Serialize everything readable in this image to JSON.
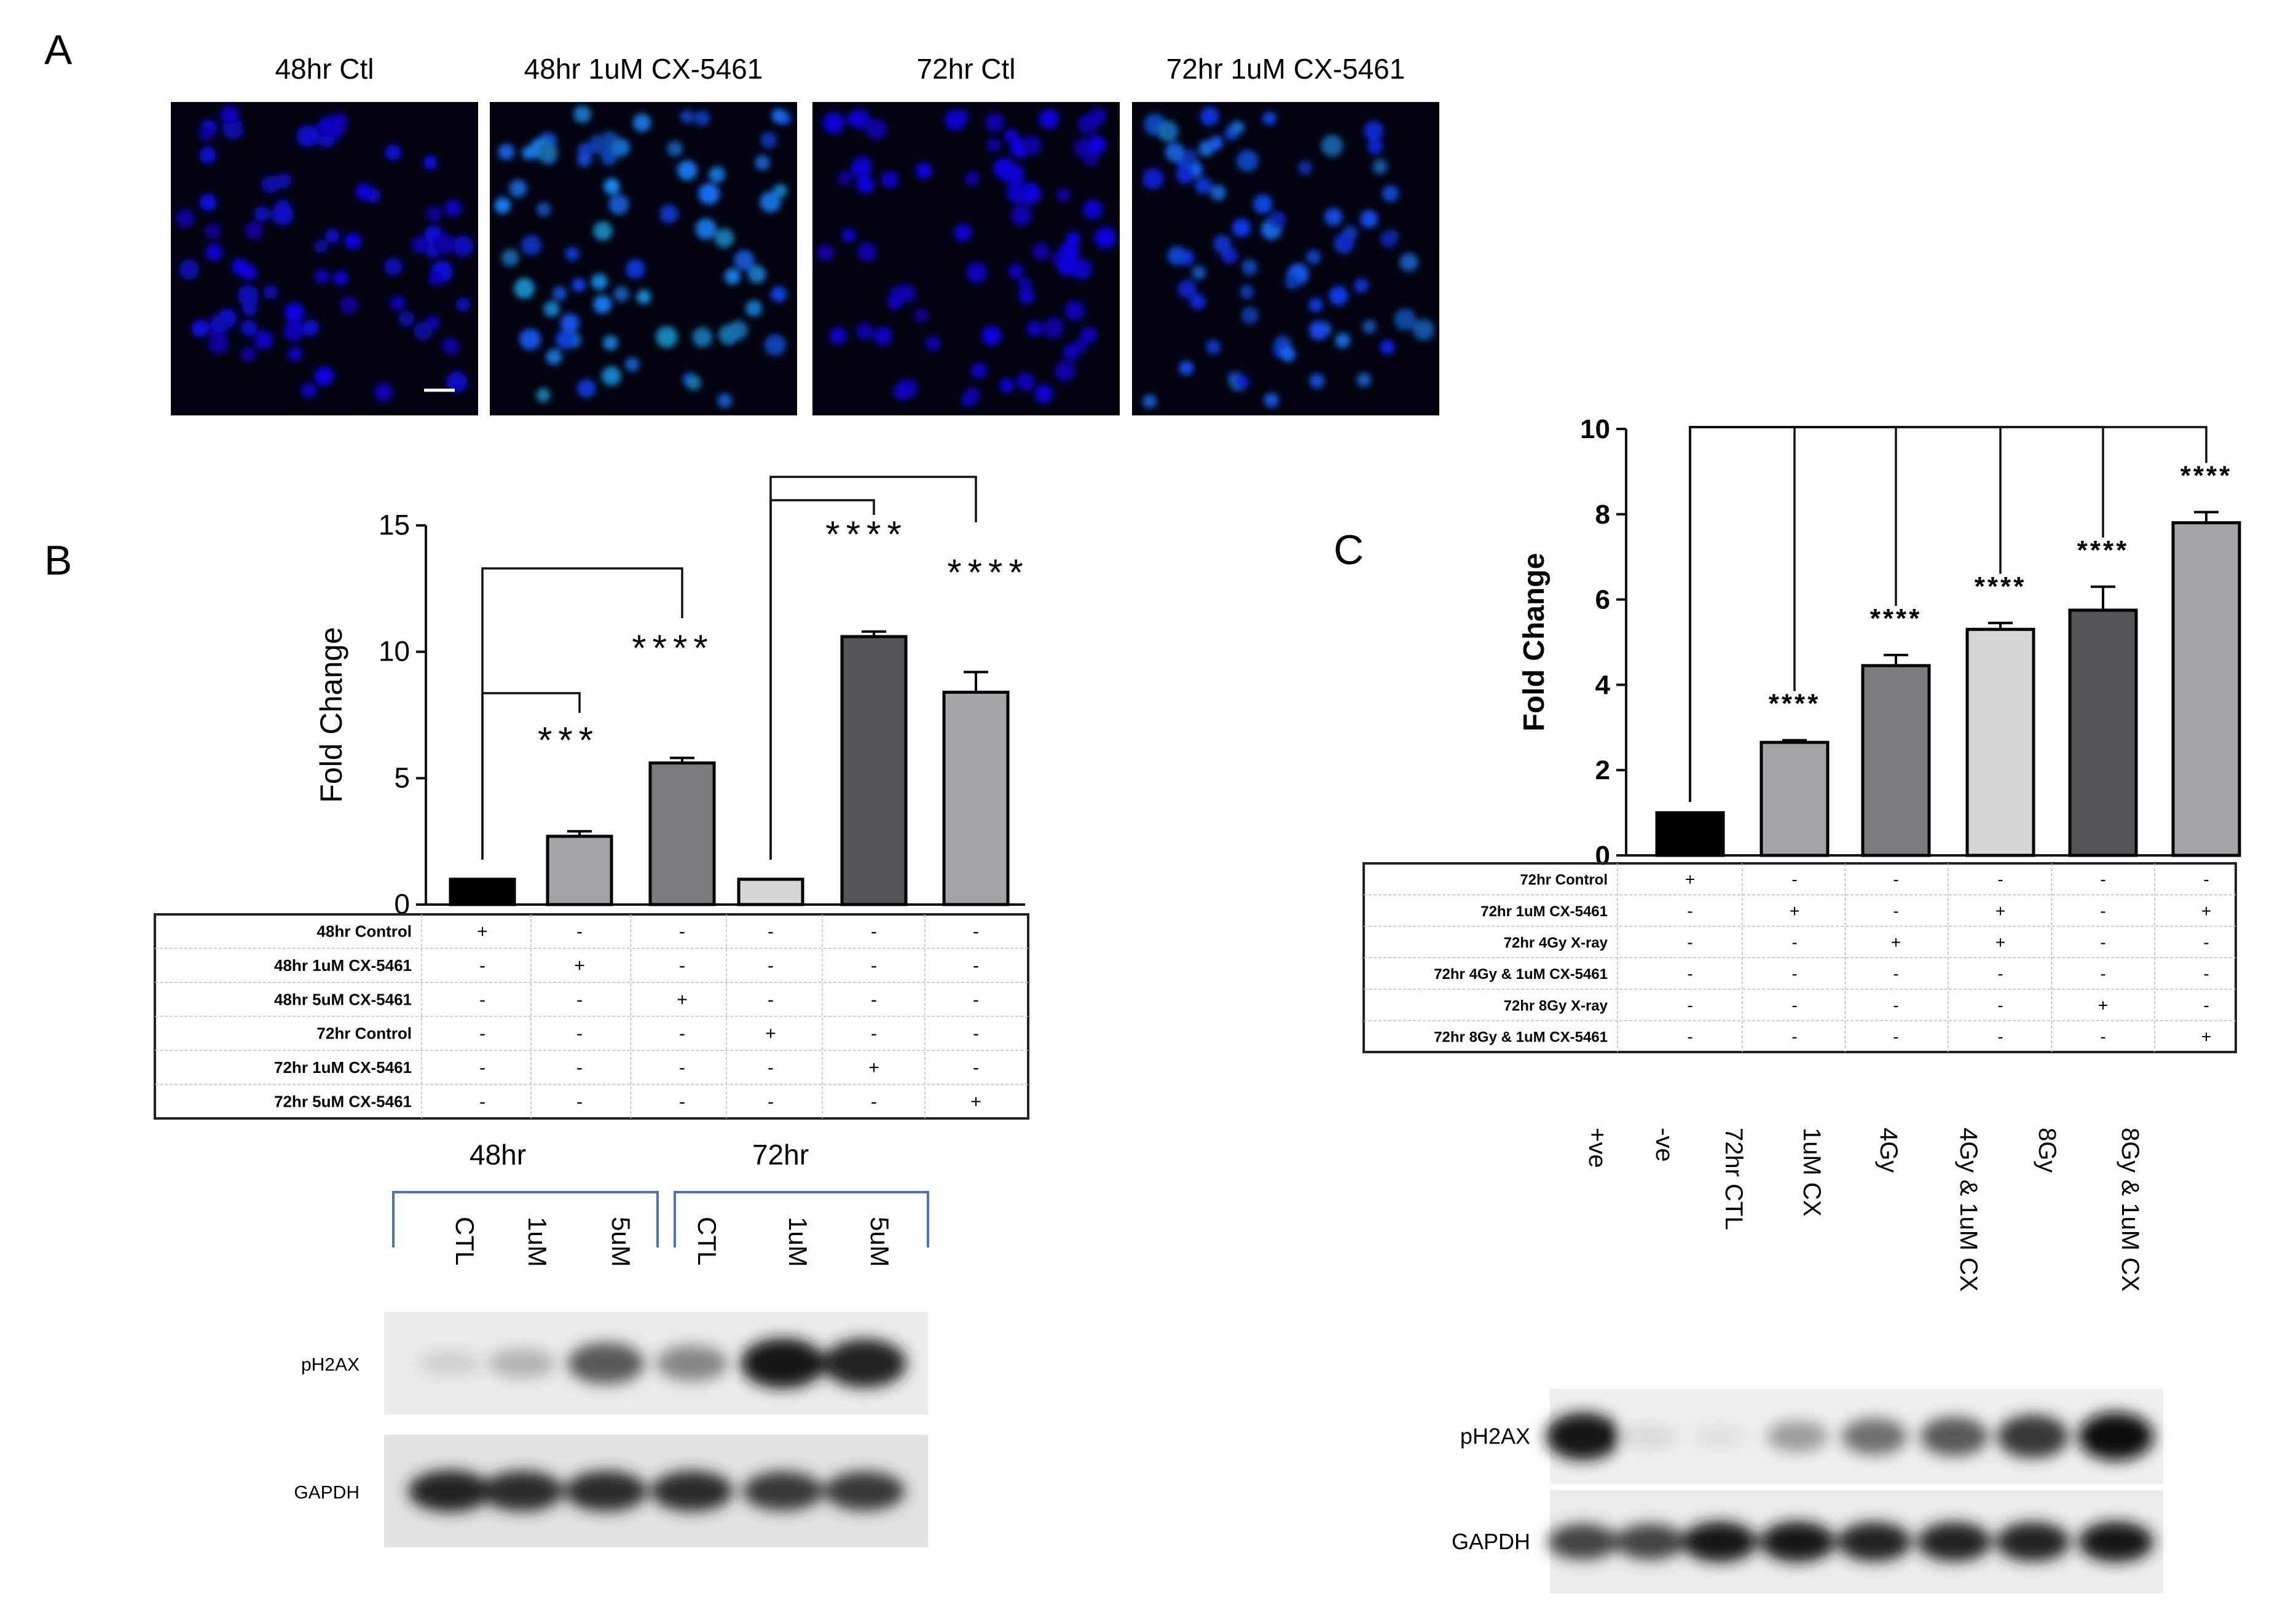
{
  "panels": {
    "a": {
      "label": "A",
      "images": [
        {
          "title": "48hr Ctl",
          "green": 0.05
        },
        {
          "title": "48hr 1uM CX-5461",
          "green": 0.75
        },
        {
          "title": "72hr Ctl",
          "green": 0.0
        },
        {
          "title": "72hr 1uM CX-5461",
          "green": 0.55
        }
      ]
    },
    "b": {
      "label": "B"
    },
    "c": {
      "label": "C"
    }
  },
  "chart_data": [
    {
      "type": "bar",
      "panel": "B",
      "ylabel": "Fold Change",
      "ylim": [
        0,
        15
      ],
      "yticks": [
        0,
        5,
        10,
        15
      ],
      "values": [
        1.0,
        2.7,
        5.6,
        1.0,
        10.6,
        8.4
      ],
      "errors": [
        0.0,
        0.2,
        0.2,
        0.0,
        0.2,
        0.8
      ],
      "bar_colors": [
        "#000000",
        "#a4a4a8",
        "#7c7c80",
        "#d6d6d6",
        "#555559",
        "#a4a4a8"
      ],
      "comparisons": [
        {
          "from": 0,
          "to": 1,
          "label": "***"
        },
        {
          "from": 0,
          "to": 2,
          "label": "****"
        },
        {
          "from": 3,
          "to": 4,
          "label": "****"
        },
        {
          "from": 3,
          "to": 5,
          "label": "****"
        }
      ],
      "conditions": [
        {
          "label": "48hr Control",
          "marks": [
            "+",
            "-",
            "-",
            "-",
            "-",
            "-"
          ]
        },
        {
          "label": "48hr 1uM CX-5461",
          "marks": [
            "-",
            "+",
            "-",
            "-",
            "-",
            "-"
          ]
        },
        {
          "label": "48hr 5uM CX-5461",
          "marks": [
            "-",
            "-",
            "+",
            "-",
            "-",
            "-"
          ]
        },
        {
          "label": "72hr Control",
          "marks": [
            "-",
            "-",
            "-",
            "+",
            "-",
            "-"
          ]
        },
        {
          "label": "72hr 1uM CX-5461",
          "marks": [
            "-",
            "-",
            "-",
            "-",
            "+",
            "-"
          ]
        },
        {
          "label": "72hr 5uM CX-5461",
          "marks": [
            "-",
            "-",
            "-",
            "-",
            "-",
            "+"
          ]
        }
      ],
      "blot": {
        "groups": [
          "48hr",
          "72hr"
        ],
        "lanes": [
          "CTL",
          "1uM",
          "5uM",
          "CTL",
          "1uM",
          "5uM"
        ],
        "rows": [
          {
            "label": "pH2AX",
            "intensity": [
              0.12,
              0.25,
              0.65,
              0.45,
              0.95,
              0.9
            ]
          },
          {
            "label": "GAPDH",
            "intensity": [
              0.9,
              0.85,
              0.85,
              0.85,
              0.8,
              0.8
            ]
          }
        ]
      }
    },
    {
      "type": "bar",
      "panel": "C",
      "ylabel": "Fold Change",
      "ylim": [
        0,
        10
      ],
      "yticks": [
        0,
        2,
        4,
        6,
        8,
        10
      ],
      "values": [
        1.0,
        2.65,
        4.45,
        5.3,
        5.75,
        7.8
      ],
      "errors": [
        0.0,
        0.05,
        0.25,
        0.15,
        0.55,
        0.25
      ],
      "bar_colors": [
        "#000000",
        "#a4a4a8",
        "#7c7c80",
        "#d6d6d6",
        "#555559",
        "#a4a4a8"
      ],
      "comparisons": [
        {
          "from": 0,
          "to": 1,
          "label": "****"
        },
        {
          "from": 0,
          "to": 2,
          "label": "****"
        },
        {
          "from": 0,
          "to": 3,
          "label": "****"
        },
        {
          "from": 0,
          "to": 4,
          "label": "****"
        },
        {
          "from": 0,
          "to": 5,
          "label": "****"
        }
      ],
      "conditions": [
        {
          "label": "72hr Control",
          "marks": [
            "+",
            "-",
            "-",
            "-",
            "-",
            "-"
          ]
        },
        {
          "label": "72hr 1uM CX-5461",
          "marks": [
            "-",
            "+",
            "-",
            "+",
            "-",
            "+"
          ]
        },
        {
          "label": "72hr 4Gy X-ray",
          "marks": [
            "-",
            "-",
            "+",
            "+",
            "-",
            "-"
          ]
        },
        {
          "label": "72hr 4Gy & 1uM CX-5461",
          "marks": [
            "-",
            "-",
            "-",
            "-",
            "-",
            "-"
          ]
        },
        {
          "label": "72hr 8Gy X-ray",
          "marks": [
            "-",
            "-",
            "-",
            "-",
            "+",
            "-"
          ]
        },
        {
          "label": "72hr 8Gy & 1uM CX-5461",
          "marks": [
            "-",
            "-",
            "-",
            "-",
            "-",
            "+"
          ]
        }
      ],
      "blot": {
        "lanes": [
          "+ve",
          "-ve",
          "72hr CTL",
          "1uM CX",
          "4Gy",
          "4Gy & 1uM CX",
          "8Gy",
          "8Gy & 1uM CX"
        ],
        "rows": [
          {
            "label": "pH2AX",
            "intensity": [
              0.95,
              0.08,
              0.05,
              0.35,
              0.55,
              0.65,
              0.8,
              0.97
            ]
          },
          {
            "label": "GAPDH",
            "intensity": [
              0.75,
              0.75,
              0.95,
              0.95,
              0.9,
              0.9,
              0.9,
              0.95
            ]
          }
        ]
      }
    }
  ]
}
